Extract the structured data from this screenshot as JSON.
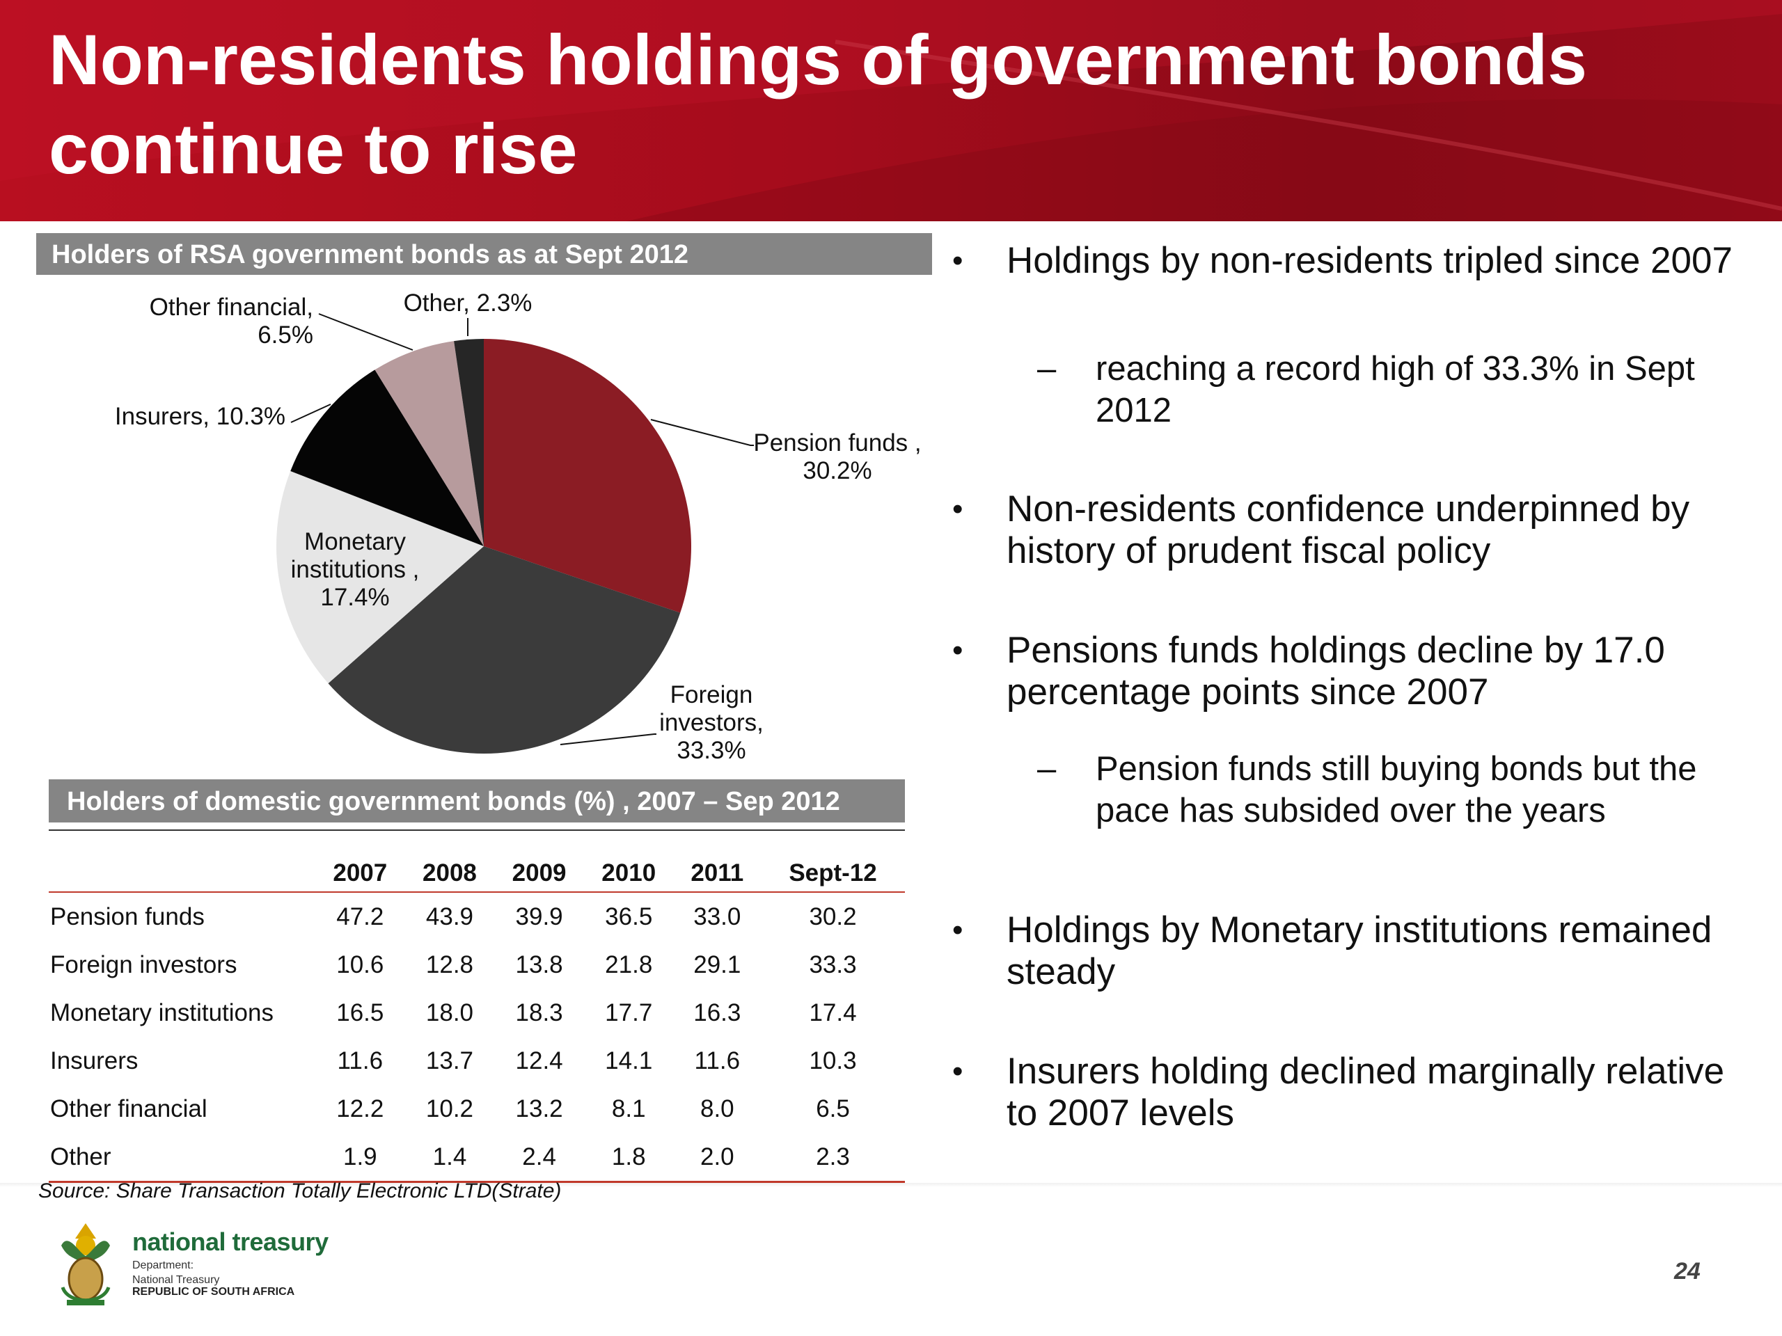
{
  "slide": {
    "title": "Non-residents holdings of government bonds continue to rise",
    "page_number": "24",
    "source": "Source: Share Transaction  Totally Electronic LTD(Strate)"
  },
  "pie_title": "Holders of RSA government bonds as at  Sept 2012",
  "table_title": "Holders of domestic government bonds (%) , 2007 – Sep 2012",
  "chart_data": [
    {
      "type": "pie",
      "title": "Holders of RSA government bonds as at  Sept 2012",
      "slices": [
        {
          "name": "Pension funds",
          "value": 30.2,
          "label_line1": "Pension funds ,",
          "label_line2": "30.2%",
          "color": "#8b1c24"
        },
        {
          "name": "Foreign investors",
          "value": 33.3,
          "label_line1": "Foreign",
          "label_line2": "investors,",
          "label_line3": "33.3%",
          "color": "#3b3b3b"
        },
        {
          "name": "Monetary institutions",
          "value": 17.4,
          "label_line1": "Monetary",
          "label_line2": "institutions ,",
          "label_line3": "17.4%",
          "color": "#e6e6e6"
        },
        {
          "name": "Insurers",
          "value": 10.3,
          "label_line1": "Insurers, 10.3%",
          "color": "#050505"
        },
        {
          "name": "Other financial",
          "value": 6.5,
          "label_line1": "Other financial,",
          "label_line2": "6.5%",
          "color": "#b79b9d"
        },
        {
          "name": "Other",
          "value": 2.3,
          "label_line1": "Other, 2.3%",
          "color": "#262626"
        }
      ]
    },
    {
      "type": "table",
      "title": "Holders of domestic government bonds (%) , 2007 – Sep 2012",
      "columns": [
        "2007",
        "2008",
        "2009",
        "2010",
        "2011",
        "Sept-12"
      ],
      "rows": [
        {
          "name": "Pension funds",
          "values": [
            "47.2",
            "43.9",
            "39.9",
            "36.5",
            "33.0",
            "30.2"
          ]
        },
        {
          "name": "Foreign investors",
          "values": [
            "10.6",
            "12.8",
            "13.8",
            "21.8",
            "29.1",
            "33.3"
          ]
        },
        {
          "name": "Monetary institutions",
          "values": [
            "16.5",
            "18.0",
            "18.3",
            "17.7",
            "16.3",
            "17.4"
          ]
        },
        {
          "name": "Insurers",
          "values": [
            "11.6",
            "13.7",
            "12.4",
            "14.1",
            "11.6",
            "10.3"
          ]
        },
        {
          "name": "Other financial",
          "values": [
            "12.2",
            "10.2",
            "13.2",
            "8.1",
            "8.0",
            "6.5"
          ]
        },
        {
          "name": "Other",
          "values": [
            "1.9",
            "1.4",
            "2.4",
            "1.8",
            "2.0",
            "2.3"
          ]
        }
      ]
    }
  ],
  "bullets": [
    {
      "text": "Holdings by non-residents tripled since 2007",
      "subs": [
        "reaching a record high of 33.3% in Sept 2012"
      ]
    },
    {
      "text": "Non-residents confidence underpinned by history of prudent fiscal policy",
      "subs": []
    },
    {
      "text": "Pensions funds holdings  decline by 17.0 percentage points since 2007",
      "subs": [
        "Pension funds still buying  bonds but the pace has subsided  over the years"
      ]
    },
    {
      "text": "Holdings by Monetary institutions remained steady",
      "subs": []
    },
    {
      "text": "Insurers holding declined marginally relative to 2007 levels",
      "subs": []
    }
  ],
  "bullet_glyph": "•",
  "dash_glyph": "–",
  "branding": {
    "name": "national treasury",
    "dept_line1": "Department:",
    "dept_line2": "National Treasury",
    "country": "REPUBLIC OF SOUTH AFRICA"
  }
}
